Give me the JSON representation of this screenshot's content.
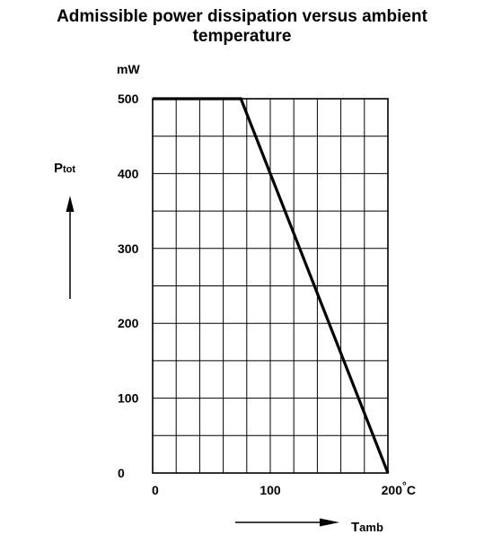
{
  "chart_data": {
    "type": "line",
    "title": "Admissible power dissipation versus ambient temperature",
    "title_lines": [
      "Admissible power dissipation versus ambient",
      "temperature"
    ],
    "ylabel_main": "P",
    "ylabel_sub": "tot",
    "yunit": "mW",
    "xlabel_main": "T",
    "xlabel_sub": "amb",
    "xunit": "°C",
    "xlim": [
      0,
      200
    ],
    "ylim": [
      0,
      500
    ],
    "x_ticks": [
      {
        "value": 0,
        "label": "0"
      },
      {
        "value": 100,
        "label": "100"
      },
      {
        "value": 200,
        "label": "200"
      }
    ],
    "y_ticks": [
      {
        "value": 0,
        "label": "0"
      },
      {
        "value": 100,
        "label": "100"
      },
      {
        "value": 200,
        "label": "200"
      },
      {
        "value": 300,
        "label": "300"
      },
      {
        "value": 400,
        "label": "400"
      },
      {
        "value": 500,
        "label": "500"
      }
    ],
    "grid": true,
    "grid_x_step": 20,
    "grid_y_step": 50,
    "series": [
      {
        "x": [
          0,
          75,
          200
        ],
        "y": [
          500,
          500,
          0
        ]
      }
    ]
  }
}
